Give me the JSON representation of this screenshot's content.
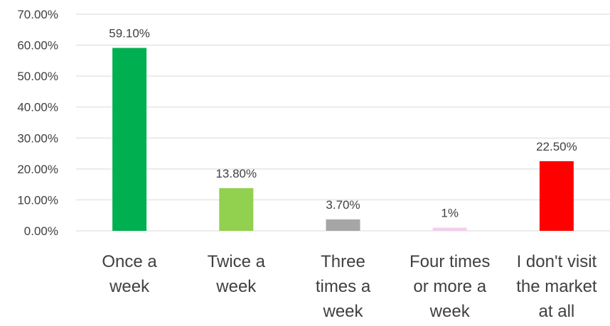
{
  "chart_data": {
    "type": "bar",
    "categories": [
      "Once a week",
      "Twice a week",
      "Three times a week",
      "Four times or more a week",
      "I don't visit the market at all"
    ],
    "category_label_lines": [
      [
        "Once a",
        "week"
      ],
      [
        "Twice a",
        "week"
      ],
      [
        "Three",
        "times a",
        "week"
      ],
      [
        "Four times",
        "or more a",
        "week"
      ],
      [
        "I don't visit",
        "the market",
        "at all"
      ]
    ],
    "values": [
      59.1,
      13.8,
      3.7,
      1,
      22.5
    ],
    "data_labels": [
      "59.10%",
      "13.80%",
      "3.70%",
      "1%",
      "22.50%"
    ],
    "colors": [
      "#00b050",
      "#92d050",
      "#a6a6a6",
      "#f4cfee",
      "#ff0000"
    ],
    "ylim": [
      0,
      70
    ],
    "yticks": [
      0,
      10,
      20,
      30,
      40,
      50,
      60,
      70
    ],
    "ytick_labels": [
      "0.00%",
      "10.00%",
      "20.00%",
      "30.00%",
      "40.00%",
      "50.00%",
      "60.00%",
      "70.00%"
    ],
    "grid": true,
    "title": "",
    "xlabel": "",
    "ylabel": ""
  }
}
